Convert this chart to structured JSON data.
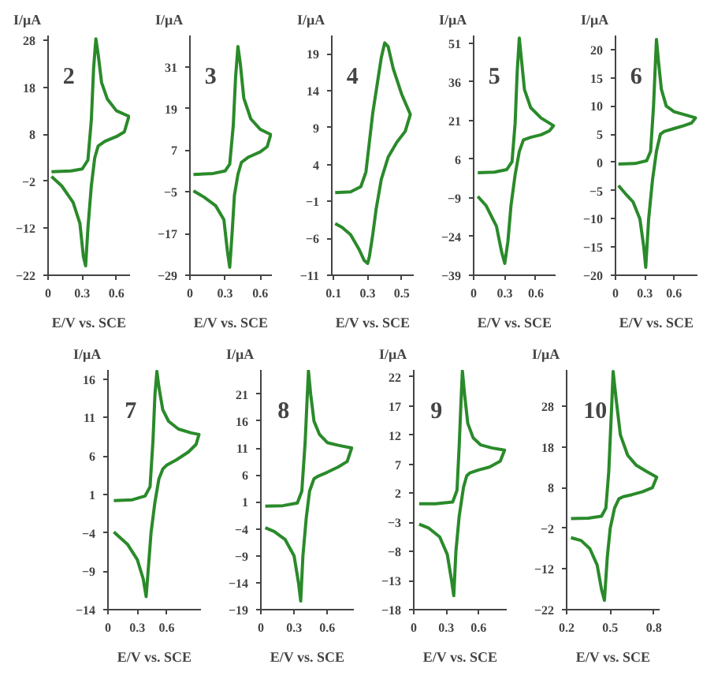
{
  "chart_data": [
    {
      "type": "line",
      "title": "2",
      "xlabel": "E/V vs. SCE",
      "ylabel": "I/μA",
      "xlim": [
        0,
        0.72
      ],
      "ylim": [
        -22,
        29
      ],
      "xticks": [
        0,
        0.3,
        0.6
      ],
      "yticks": [
        -22,
        -12,
        -2,
        8,
        18,
        28
      ],
      "series": [
        {
          "color": "#2a8a2a",
          "x": [
            0.03,
            0.2,
            0.3,
            0.35,
            0.38,
            0.4,
            0.42,
            0.44,
            0.47,
            0.52,
            0.6,
            0.71,
            0.67,
            0.6,
            0.5,
            0.44,
            0.41,
            0.38,
            0.35,
            0.33,
            0.31,
            0.28,
            0.22,
            0.12,
            0.03
          ],
          "values": [
            0,
            0.2,
            0.6,
            2.5,
            11,
            22,
            28.3,
            25,
            19,
            15.5,
            13,
            11.8,
            8.5,
            7.5,
            6.5,
            5.5,
            3,
            -3,
            -12,
            -20,
            -18,
            -11,
            -6.5,
            -3,
            -1
          ]
        }
      ]
    },
    {
      "type": "line",
      "title": "3",
      "xlabel": "E/V vs. SCE",
      "ylabel": "I/μA",
      "xlim": [
        0,
        0.7
      ],
      "ylim": [
        -29,
        40
      ],
      "xticks": [
        0,
        0.3,
        0.6
      ],
      "yticks": [
        -29,
        -17,
        -5,
        7,
        19,
        31
      ],
      "series": [
        {
          "color": "#2a8a2a",
          "x": [
            0.03,
            0.2,
            0.3,
            0.34,
            0.37,
            0.39,
            0.41,
            0.43,
            0.46,
            0.52,
            0.6,
            0.69,
            0.66,
            0.6,
            0.5,
            0.44,
            0.41,
            0.38,
            0.36,
            0.34,
            0.32,
            0.29,
            0.22,
            0.12,
            0.03
          ],
          "values": [
            0,
            0.3,
            1,
            3,
            14,
            28,
            36.8,
            32,
            22,
            16,
            13,
            11.5,
            8,
            6.5,
            5,
            3.5,
            0,
            -6,
            -17,
            -26.7,
            -22,
            -13,
            -9,
            -6.5,
            -4.7
          ]
        }
      ]
    },
    {
      "type": "line",
      "title": "4",
      "xlabel": "E/V vs. SCE",
      "ylabel": "I/μA",
      "xlim": [
        0.09,
        0.57
      ],
      "ylim": [
        -11,
        21.5
      ],
      "xticks": [
        0.1,
        0.3,
        0.5
      ],
      "yticks": [
        -11,
        -6,
        -1,
        4,
        9,
        14,
        19
      ],
      "series": [
        {
          "color": "#2a8a2a",
          "x": [
            0.11,
            0.2,
            0.26,
            0.29,
            0.31,
            0.33,
            0.36,
            0.38,
            0.4,
            0.42,
            0.45,
            0.5,
            0.55,
            0.52,
            0.47,
            0.42,
            0.38,
            0.35,
            0.33,
            0.31,
            0.3,
            0.28,
            0.25,
            0.2,
            0.15,
            0.11
          ],
          "values": [
            0.2,
            0.3,
            1,
            3,
            7,
            11,
            15.5,
            18.5,
            20.5,
            20,
            17,
            13.5,
            10.8,
            8.5,
            7,
            5,
            2,
            -2,
            -5.5,
            -8.5,
            -9.4,
            -9,
            -7.5,
            -5.5,
            -4.5,
            -4
          ]
        }
      ]
    },
    {
      "type": "line",
      "title": "5",
      "xlabel": "E/V vs. SCE",
      "ylabel": "I/μA",
      "xlim": [
        0,
        0.79
      ],
      "ylim": [
        -39,
        54
      ],
      "xticks": [
        0,
        0.3,
        0.6
      ],
      "yticks": [
        -39,
        -24,
        -9,
        6,
        21,
        36,
        51
      ],
      "series": [
        {
          "color": "#2a8a2a",
          "x": [
            0.04,
            0.2,
            0.32,
            0.37,
            0.4,
            0.42,
            0.44,
            0.46,
            0.49,
            0.55,
            0.65,
            0.77,
            0.73,
            0.65,
            0.55,
            0.48,
            0.44,
            0.4,
            0.36,
            0.33,
            0.3,
            0.27,
            0.22,
            0.12,
            0.04
          ],
          "values": [
            0.8,
            1,
            2,
            5,
            20,
            40,
            53,
            45,
            33,
            26,
            22,
            19,
            17,
            15.5,
            14.5,
            13.5,
            9,
            0,
            -12,
            -26,
            -34.4,
            -30,
            -20,
            -12,
            -8.4
          ]
        }
      ]
    },
    {
      "type": "line",
      "title": "6",
      "xlabel": "E/V vs. SCE",
      "ylabel": "I/μA",
      "xlim": [
        0,
        0.84
      ],
      "ylim": [
        -20,
        22.5
      ],
      "xticks": [
        0,
        0.3,
        0.6
      ],
      "yticks": [
        -20,
        -15,
        -10,
        -5,
        0,
        5,
        10,
        15,
        20
      ],
      "series": [
        {
          "color": "#2a8a2a",
          "x": [
            0.03,
            0.2,
            0.32,
            0.36,
            0.39,
            0.41,
            0.42,
            0.44,
            0.47,
            0.52,
            0.6,
            0.7,
            0.82,
            0.78,
            0.7,
            0.6,
            0.5,
            0.46,
            0.42,
            0.38,
            0.34,
            0.31,
            0.29,
            0.25,
            0.18,
            0.1,
            0.03
          ],
          "values": [
            -0.3,
            -0.2,
            0.3,
            2,
            10,
            18,
            21.8,
            18,
            13,
            10,
            9,
            8.5,
            7.9,
            7,
            6.5,
            6,
            5.5,
            5,
            2,
            -3,
            -10,
            -18.6,
            -15,
            -10,
            -7,
            -5.5,
            -4.1
          ]
        }
      ]
    },
    {
      "type": "line",
      "title": "7",
      "xlabel": "E/V vs. SCE",
      "ylabel": "I/μA",
      "xlim": [
        0,
        0.95
      ],
      "ylim": [
        -14,
        17.2
      ],
      "xticks": [
        0,
        0.3,
        0.6
      ],
      "yticks": [
        -14,
        -9,
        -4,
        1,
        6,
        11,
        16
      ],
      "series": [
        {
          "color": "#2a8a2a",
          "x": [
            0.06,
            0.25,
            0.38,
            0.43,
            0.46,
            0.48,
            0.5,
            0.52,
            0.56,
            0.62,
            0.72,
            0.85,
            0.93,
            0.9,
            0.82,
            0.7,
            0.6,
            0.56,
            0.52,
            0.48,
            0.44,
            0.41,
            0.39,
            0.36,
            0.3,
            0.2,
            0.06
          ],
          "values": [
            0.2,
            0.3,
            0.8,
            2,
            8,
            14,
            17,
            15,
            12,
            10.5,
            9.5,
            9,
            8.8,
            7.5,
            6.5,
            5.5,
            4.8,
            4.3,
            3,
            0,
            -4,
            -9,
            -12.3,
            -10,
            -7.5,
            -5.5,
            -3.9
          ]
        }
      ]
    },
    {
      "type": "line",
      "title": "8",
      "xlabel": "E/V vs. SCE",
      "ylabel": "I/μA",
      "xlim": [
        0,
        0.84
      ],
      "ylim": [
        -19,
        25.5
      ],
      "xticks": [
        0,
        0.3,
        0.6
      ],
      "yticks": [
        -19,
        -14,
        -9,
        -4,
        1,
        6,
        11,
        16,
        21
      ],
      "series": [
        {
          "color": "#2a8a2a",
          "x": [
            0.04,
            0.2,
            0.33,
            0.37,
            0.4,
            0.42,
            0.43,
            0.45,
            0.48,
            0.53,
            0.6,
            0.7,
            0.82,
            0.78,
            0.7,
            0.6,
            0.52,
            0.48,
            0.44,
            0.41,
            0.38,
            0.36,
            0.34,
            0.3,
            0.22,
            0.12,
            0.04
          ],
          "values": [
            0.2,
            0.3,
            0.8,
            3,
            12,
            21,
            25.3,
            21,
            16,
            13.5,
            12,
            11.5,
            11,
            8.5,
            7.5,
            6.5,
            5.8,
            5.3,
            3,
            -2,
            -9,
            -17.4,
            -14,
            -9,
            -6,
            -4.5,
            -3.8
          ]
        }
      ]
    },
    {
      "type": "line",
      "title": "9",
      "xlabel": "E/V vs. SCE",
      "ylabel": "I/μA",
      "xlim": [
        0,
        0.86
      ],
      "ylim": [
        -18,
        23.2
      ],
      "xticks": [
        0,
        0.3,
        0.6
      ],
      "yticks": [
        -18,
        -13,
        -8,
        -3,
        2,
        7,
        12,
        17,
        22
      ],
      "series": [
        {
          "color": "#2a8a2a",
          "x": [
            0.05,
            0.2,
            0.36,
            0.4,
            0.42,
            0.44,
            0.45,
            0.47,
            0.5,
            0.55,
            0.62,
            0.72,
            0.84,
            0.8,
            0.7,
            0.6,
            0.52,
            0.49,
            0.46,
            0.42,
            0.39,
            0.37,
            0.35,
            0.31,
            0.24,
            0.14,
            0.05
          ],
          "values": [
            0.2,
            0.2,
            0.5,
            2.5,
            10,
            19,
            23,
            19,
            14,
            11.5,
            10.3,
            9.8,
            9.4,
            7.5,
            6.5,
            6,
            5.5,
            5,
            3,
            -2,
            -8,
            -15.6,
            -13,
            -8.5,
            -5.5,
            -4,
            -3.3
          ]
        }
      ]
    },
    {
      "type": "line",
      "title": "10",
      "xlabel": "E/V vs. SCE",
      "ylabel": "I/μA",
      "xlim": [
        0.2,
        0.84
      ],
      "ylim": [
        -22,
        37
      ],
      "xticks": [
        0.2,
        0.5,
        0.8
      ],
      "yticks": [
        -22,
        -12,
        -2,
        8,
        18,
        28
      ],
      "series": [
        {
          "color": "#2a8a2a",
          "x": [
            0.23,
            0.35,
            0.44,
            0.47,
            0.49,
            0.51,
            0.52,
            0.54,
            0.57,
            0.62,
            0.68,
            0.75,
            0.82,
            0.79,
            0.72,
            0.65,
            0.59,
            0.56,
            0.53,
            0.5,
            0.48,
            0.46,
            0.44,
            0.41,
            0.36,
            0.3,
            0.23
          ],
          "values": [
            0.4,
            0.5,
            1,
            3,
            12,
            28,
            36.6,
            30,
            21,
            16,
            13.5,
            12,
            10.6,
            8,
            7,
            6.3,
            5.8,
            5.3,
            3,
            -2,
            -9,
            -19.7,
            -17,
            -11,
            -7,
            -5,
            -4.3
          ]
        }
      ]
    }
  ]
}
